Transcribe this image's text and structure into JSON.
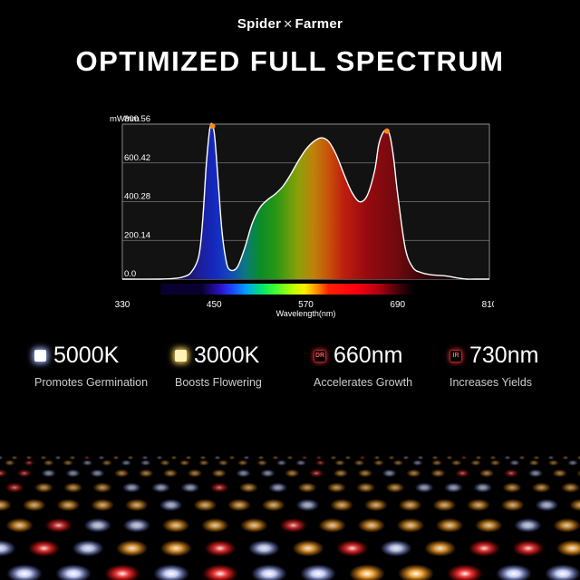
{
  "brand": {
    "left": "Spider",
    "right": "Farmer",
    "icon": "spider-logo"
  },
  "headline": "OPTIMIZED FULL SPECTRUM",
  "chart_data": {
    "type": "area",
    "ylabel": "mW/nm",
    "xlabel": "Wavelength(nm)",
    "x_ticks": [
      330,
      450,
      570,
      690,
      810
    ],
    "y_ticks": [
      "0.0",
      "200.14",
      "400.28",
      "600.42",
      "800.56"
    ],
    "xlim": [
      330,
      810
    ],
    "ylim": [
      0,
      800.56
    ],
    "grid": true,
    "x": [
      330,
      380,
      400,
      410,
      420,
      430,
      435,
      440,
      445,
      450,
      455,
      460,
      465,
      470,
      480,
      490,
      500,
      510,
      520,
      530,
      540,
      550,
      560,
      570,
      580,
      590,
      600,
      610,
      620,
      630,
      640,
      650,
      660,
      665,
      670,
      675,
      680,
      685,
      690,
      700,
      710,
      720,
      730,
      740,
      750,
      760,
      770,
      780,
      790,
      800,
      810
    ],
    "y": [
      0,
      0,
      4,
      12,
      35,
      120,
      300,
      600,
      790,
      760,
      520,
      260,
      110,
      50,
      60,
      160,
      290,
      370,
      410,
      440,
      480,
      540,
      610,
      670,
      710,
      730,
      710,
      640,
      540,
      450,
      400,
      430,
      560,
      690,
      750,
      770,
      740,
      620,
      440,
      160,
      60,
      35,
      25,
      20,
      18,
      12,
      5,
      0,
      0,
      0,
      0
    ],
    "peaks": [
      {
        "x": 448,
        "y": 790,
        "color": "#ff8a1c"
      },
      {
        "x": 676,
        "y": 765,
        "color": "#ff8a1c"
      }
    ]
  },
  "features": [
    {
      "value": "5000K",
      "desc": "Promotes Germination",
      "icon": "cool-white-square",
      "color": "#ffffff",
      "glow": "#9fb4ff",
      "tag": ""
    },
    {
      "value": "3000K",
      "desc": "Boosts Flowering",
      "icon": "warm-white-square",
      "color": "#fff2b8",
      "glow": "#ffd25a",
      "tag": ""
    },
    {
      "value": "660nm",
      "desc": "Accelerates Growth",
      "icon": "deep-red-tag",
      "color": "#ff3030",
      "glow": "#ff3030",
      "tag": "DR"
    },
    {
      "value": "730nm",
      "desc": "Increases Yields",
      "icon": "infrared-tag",
      "color": "#ff3030",
      "glow": "#ff3030",
      "tag": "IR"
    }
  ]
}
